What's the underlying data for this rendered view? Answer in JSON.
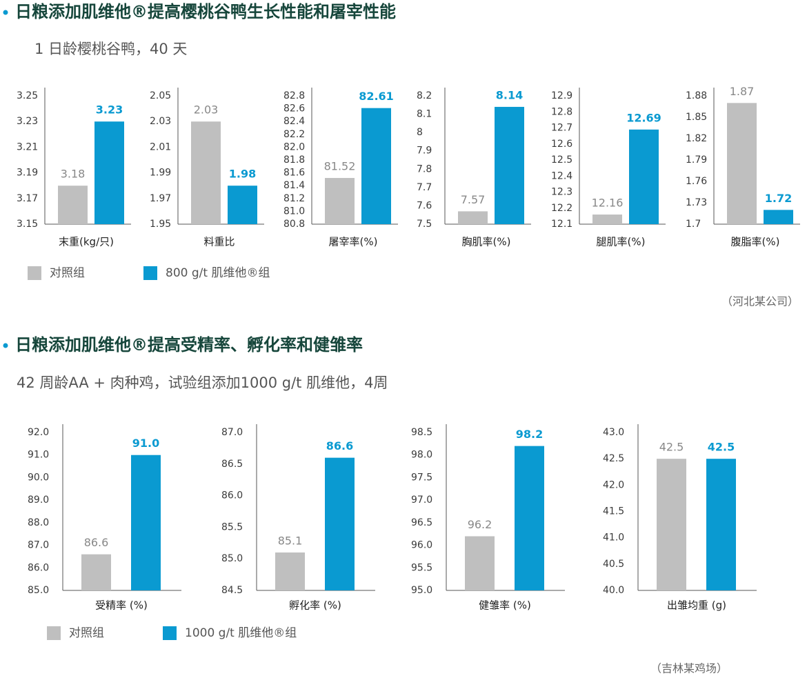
{
  "sections": [
    {
      "title": "日粮添加肌维他®提高樱桃谷鸭生长性能和屠宰性能",
      "subtitle": "1 日龄樱桃谷鸭，40 天",
      "legend": [
        {
          "name": "对照组",
          "color": "#bfbfbf"
        },
        {
          "name": "800 g/t 肌维他®组",
          "color": "#0a9ad1"
        }
      ],
      "source": "（河北某公司）"
    },
    {
      "title": "日粮添加肌维他®提高受精率、孵化率和健雏率",
      "subtitle": "42 周龄AA + 肉种鸡，试验组添加1000 g/t 肌维他，4周",
      "legend": [
        {
          "name": "对照组",
          "color": "#bfbfbf"
        },
        {
          "name": "1000 g/t 肌维他®组",
          "color": "#0a9ad1"
        }
      ],
      "source": "（吉林某鸡场）"
    }
  ],
  "chart_data": [
    {
      "type": "bar",
      "xlabel": "末重(kg/只)",
      "values": [
        3.18,
        3.23
      ],
      "ylim": [
        3.15,
        3.25
      ],
      "yticks": [
        3.15,
        3.17,
        3.19,
        3.21,
        3.23,
        3.25
      ]
    },
    {
      "type": "bar",
      "xlabel": "料重比",
      "values": [
        2.03,
        1.98
      ],
      "ylim": [
        1.95,
        2.05
      ],
      "yticks": [
        1.95,
        1.97,
        1.99,
        2.01,
        2.03,
        2.05
      ]
    },
    {
      "type": "bar",
      "xlabel": "屠宰率(%)",
      "values": [
        81.52,
        82.61
      ],
      "ylim": [
        80.8,
        82.8
      ],
      "yticks": [
        80.8,
        {
          "value": 81,
          "label": "81.0"
        },
        81.2,
        81.4,
        81.6,
        81.8,
        {
          "value": 82,
          "label": "82.0"
        },
        82.2,
        82.4,
        82.6,
        82.8
      ]
    },
    {
      "type": "bar",
      "xlabel": "胸肌率(%)",
      "values": [
        7.57,
        8.14
      ],
      "ylim": [
        7.5,
        8.2
      ],
      "yticks": [
        7.5,
        7.6,
        7.7,
        7.8,
        7.9,
        8,
        8.1,
        8.2
      ]
    },
    {
      "type": "bar",
      "xlabel": "腿肌率(%)",
      "values": [
        12.16,
        12.69
      ],
      "ylim": [
        12.1,
        12.9
      ],
      "yticks": [
        12.1,
        12.2,
        12.3,
        12.4,
        12.5,
        12.6,
        12.7,
        12.8,
        12.9
      ]
    },
    {
      "type": "bar",
      "xlabel": "腹脂率(%)",
      "values": [
        1.87,
        1.72
      ],
      "ylim": [
        1.7,
        1.88
      ],
      "yticks": [
        1.7,
        1.73,
        1.76,
        1.79,
        1.82,
        1.85,
        1.88
      ]
    },
    {
      "type": "bar",
      "xlabel": "受精率 (%)",
      "values": [
        86.6,
        91
      ],
      "value_labels": [
        "86.6",
        "91.0"
      ],
      "ylim": [
        85,
        92
      ],
      "yticks": [
        {
          "value": 85,
          "label": "85.0"
        },
        {
          "value": 86,
          "label": "86.0"
        },
        {
          "value": 87,
          "label": "87.0"
        },
        {
          "value": 88,
          "label": "88.0"
        },
        {
          "value": 89,
          "label": "89.0"
        },
        {
          "value": 90,
          "label": "90.0"
        },
        {
          "value": 91,
          "label": "91.0"
        },
        {
          "value": 92,
          "label": "92.0"
        }
      ]
    },
    {
      "type": "bar",
      "xlabel": "孵化率 (%)",
      "values": [
        85.1,
        86.6
      ],
      "ylim": [
        84.5,
        87
      ],
      "yticks": [
        84.5,
        {
          "value": 85,
          "label": "85.0"
        },
        85.5,
        {
          "value": 86,
          "label": "86.0"
        },
        86.5,
        {
          "value": 87,
          "label": "87.0"
        }
      ]
    },
    {
      "type": "bar",
      "xlabel": "健雏率 (%)",
      "values": [
        96.2,
        98.2
      ],
      "ylim": [
        95,
        98.5
      ],
      "yticks": [
        {
          "value": 95,
          "label": "95.0"
        },
        95.5,
        {
          "value": 96,
          "label": "96.0"
        },
        96.5,
        {
          "value": 97,
          "label": "97.0"
        },
        97.5,
        {
          "value": 98,
          "label": "98.0"
        },
        98.5
      ]
    },
    {
      "type": "bar",
      "xlabel": "出雏均重 (g)",
      "values": [
        42.5,
        42.5
      ],
      "ylim": [
        40,
        43
      ],
      "yticks": [
        {
          "value": 40,
          "label": "40.0"
        },
        40.5,
        {
          "value": 41,
          "label": "41.0"
        },
        41.5,
        {
          "value": 42,
          "label": "42.0"
        },
        42.5,
        {
          "value": 43,
          "label": "43.0"
        }
      ]
    }
  ]
}
